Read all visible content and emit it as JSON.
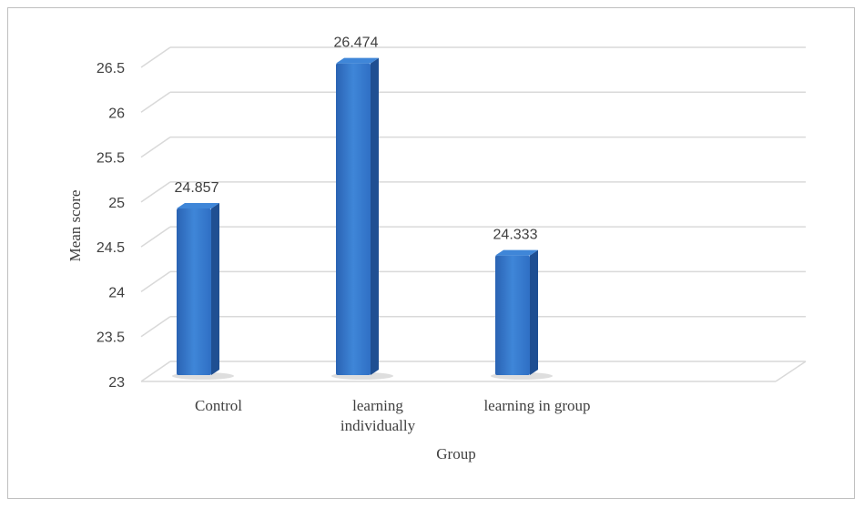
{
  "chart_data": {
    "type": "bar",
    "categories": [
      "Control",
      "learning individually",
      "learning in group"
    ],
    "category_lines": [
      [
        "Control"
      ],
      [
        "learning",
        "individually"
      ],
      [
        "learning in group"
      ]
    ],
    "values": [
      24.857,
      26.474,
      24.333
    ],
    "data_labels": [
      "24.857",
      "26.474",
      "24.333"
    ],
    "ylim": [
      23,
      26.5
    ],
    "yticks": [
      23,
      23.5,
      24,
      24.5,
      25,
      25.5,
      26,
      26.5
    ],
    "ytick_labels": [
      "23",
      "23.5",
      "24",
      "24.5",
      "25",
      "25.5",
      "26",
      "26.5"
    ],
    "xlabel": "Group",
    "ylabel": "Mean score",
    "grid": true,
    "bar_color": "#2f6fc4",
    "bar_side_color": "#1f4f92",
    "bar_top_color": "#3f86d8"
  }
}
